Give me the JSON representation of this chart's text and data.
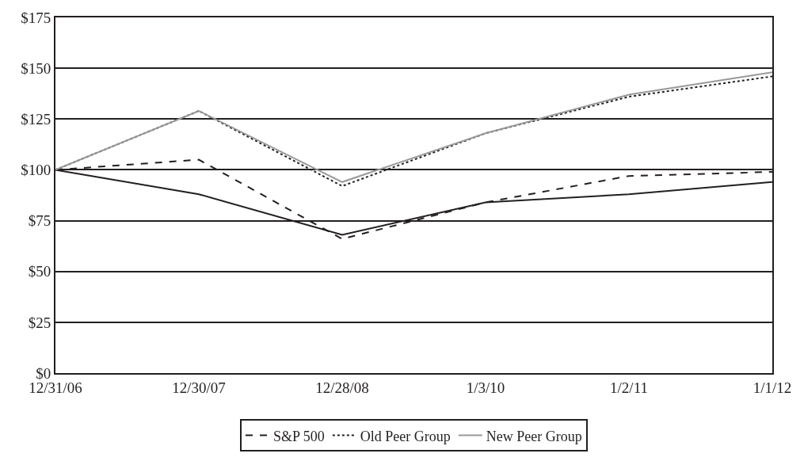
{
  "chart_data": {
    "type": "line",
    "categories": [
      "12/31/06",
      "12/30/07",
      "12/28/08",
      "1/3/10",
      "1/2/11",
      "1/1/12"
    ],
    "series": [
      {
        "color": "#231f20",
        "line_style": "solid",
        "values": [
          100,
          88,
          68,
          84,
          88,
          94
        ]
      },
      {
        "name": "S&P 500",
        "color": "#231f20",
        "line_style": "dashed",
        "values": [
          100,
          105,
          66,
          84,
          97,
          99
        ]
      },
      {
        "name": "Old Peer Group",
        "color": "#231f20",
        "line_style": "dotted",
        "values": [
          100,
          129,
          92,
          118,
          136,
          146
        ]
      },
      {
        "name": "New Peer Group",
        "color": "#999999",
        "line_style": "solid",
        "values": [
          100,
          129,
          94,
          118,
          137,
          148
        ]
      }
    ],
    "ylim": [
      0,
      175
    ],
    "yticks": [
      {
        "value": 0,
        "label": "$0"
      },
      {
        "value": 25,
        "label": "$25"
      },
      {
        "value": 50,
        "label": "$50"
      },
      {
        "value": 75,
        "label": "$75"
      },
      {
        "value": 100,
        "label": "$100"
      },
      {
        "value": 125,
        "label": "$125"
      },
      {
        "value": 150,
        "label": "$150"
      },
      {
        "value": 175,
        "label": "$175"
      }
    ],
    "grid": "y",
    "legend": "bottom",
    "marker": "none"
  }
}
